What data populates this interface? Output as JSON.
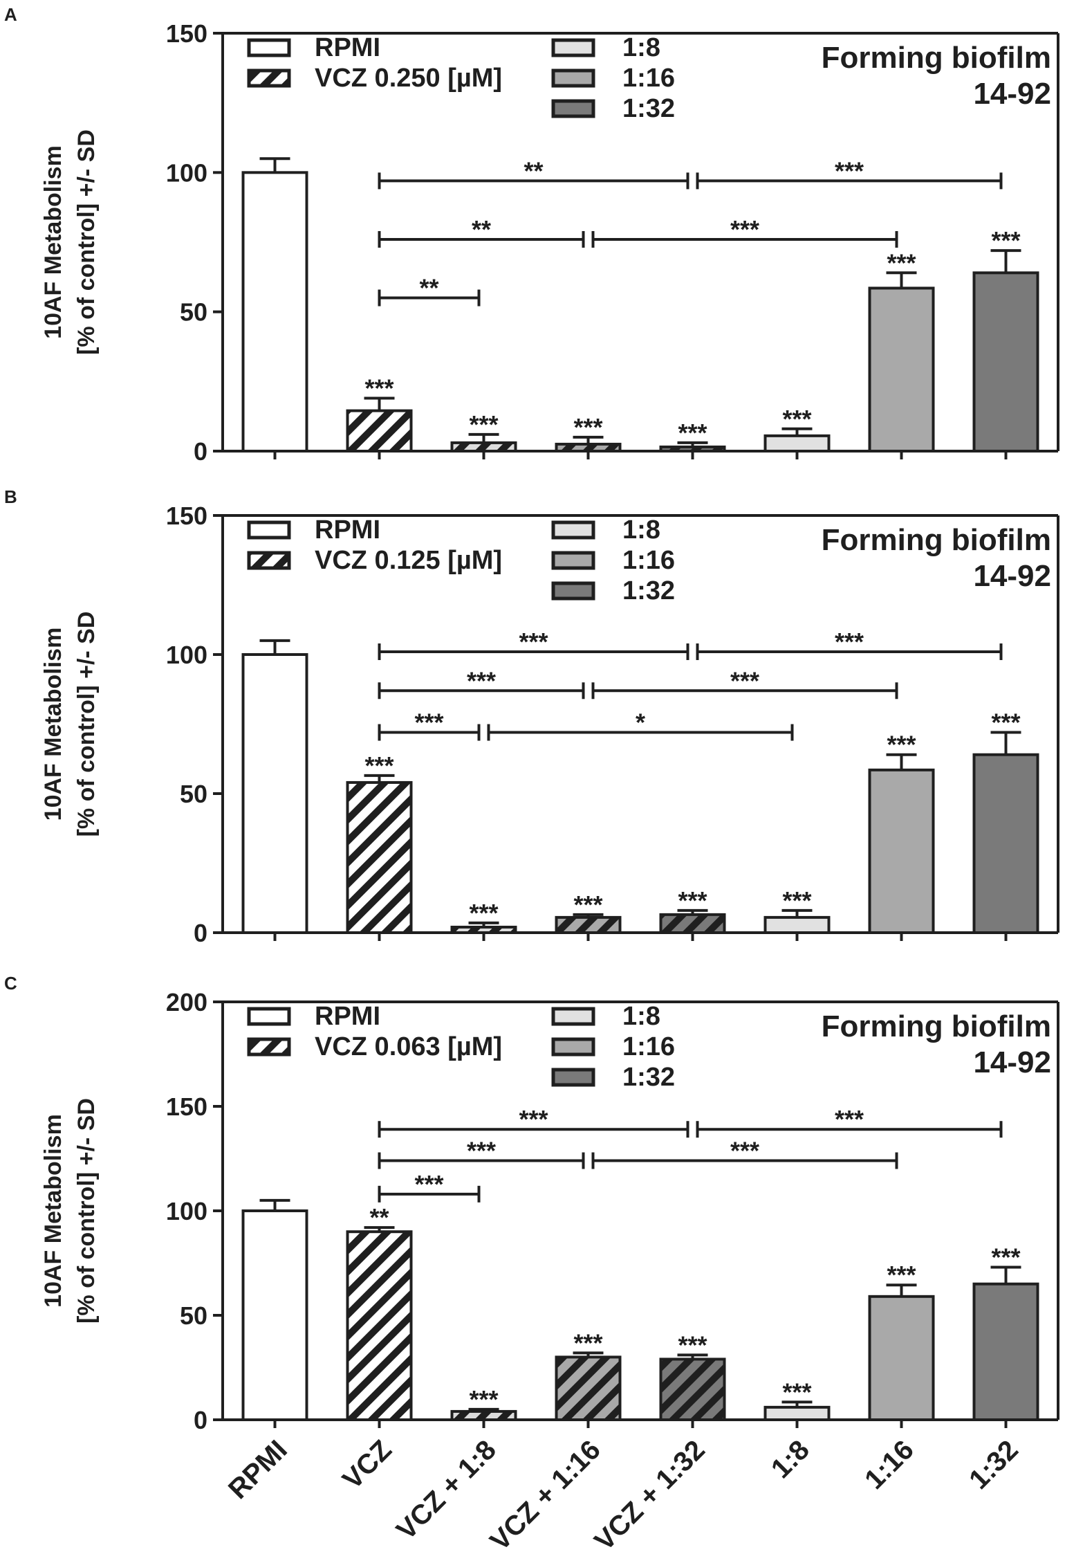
{
  "colors": {
    "rpmi": "#ffffff",
    "c18": "#e1e1e1",
    "c116": "#a9a9a9",
    "c132": "#7a7a7a",
    "ink": "#1f1f1f"
  },
  "chart_data": [
    {
      "type": "bar",
      "panel_label": "A",
      "ylabel_line1": "10AF Metabolism",
      "ylabel_line2": "[% of control] +/- SD",
      "ylim": [
        0,
        150
      ],
      "yticks": [
        "0",
        "50",
        "100",
        "150"
      ],
      "title_line1": "Forming biofilm",
      "title_line2": "14-92",
      "legend": {
        "rpmi": "RPMI",
        "vcz": "VCZ 0.250 [µM]",
        "c18": "1:8",
        "c116": "1:16",
        "c132": "1:32"
      },
      "categories": [
        "RPMI",
        "VCZ",
        "VCZ + 1:8",
        "VCZ + 1:16",
        "VCZ + 1:32",
        "1:8",
        "1:16",
        "1:32"
      ],
      "values": [
        100,
        14.5,
        3,
        2.5,
        1.5,
        5.5,
        58.5,
        64
      ],
      "sd": [
        5,
        4.5,
        3,
        2.5,
        1.5,
        2.5,
        5.5,
        8
      ],
      "marks": [
        "",
        "***",
        "***",
        "***",
        "***",
        "***",
        "***",
        "***"
      ],
      "comparisons": [
        {
          "from": 1,
          "to": 4,
          "y": 97,
          "label": "**"
        },
        {
          "from": 4,
          "to": 7,
          "y": 97,
          "label": "***"
        },
        {
          "from": 1,
          "to": 3,
          "y": 76,
          "label": "**"
        },
        {
          "from": 3,
          "to": 6,
          "y": 76,
          "label": "***"
        },
        {
          "from": 1,
          "to": 2,
          "y": 55,
          "label": "**"
        }
      ]
    },
    {
      "type": "bar",
      "panel_label": "B",
      "ylabel_line1": "10AF Metabolism",
      "ylabel_line2": "[% of control] +/- SD",
      "ylim": [
        0,
        150
      ],
      "yticks": [
        "0",
        "50",
        "100",
        "150"
      ],
      "title_line1": "Forming biofilm",
      "title_line2": "14-92",
      "legend": {
        "rpmi": "RPMI",
        "vcz": "VCZ 0.125 [µM]",
        "c18": "1:8",
        "c116": "1:16",
        "c132": "1:32"
      },
      "categories": [
        "RPMI",
        "VCZ",
        "VCZ + 1:8",
        "VCZ + 1:16",
        "VCZ + 1:32",
        "1:8",
        "1:16",
        "1:32"
      ],
      "values": [
        100,
        54,
        2,
        5.5,
        6.5,
        5.5,
        58.5,
        64
      ],
      "sd": [
        5,
        2.5,
        1.5,
        1,
        1.5,
        2.5,
        5.5,
        8
      ],
      "marks": [
        "",
        "***",
        "***",
        "***",
        "***",
        "***",
        "***",
        "***"
      ],
      "comparisons": [
        {
          "from": 1,
          "to": 4,
          "y": 101,
          "label": "***"
        },
        {
          "from": 4,
          "to": 7,
          "y": 101,
          "label": "***"
        },
        {
          "from": 1,
          "to": 3,
          "y": 87,
          "label": "***"
        },
        {
          "from": 3,
          "to": 6,
          "y": 87,
          "label": "***"
        },
        {
          "from": 1,
          "to": 2,
          "y": 72,
          "label": "***"
        },
        {
          "from": 2,
          "to": 5,
          "y": 72,
          "label": "*"
        }
      ]
    },
    {
      "type": "bar",
      "panel_label": "C",
      "ylabel_line1": "10AF Metabolism",
      "ylabel_line2": "[% of control] +/- SD",
      "ylim": [
        0,
        200
      ],
      "yticks": [
        "0",
        "50",
        "100",
        "150",
        "200"
      ],
      "title_line1": "Forming biofilm",
      "title_line2": "14-92",
      "legend": {
        "rpmi": "RPMI",
        "vcz": "VCZ 0.063 [µM]",
        "c18": "1:8",
        "c116": "1:16",
        "c132": "1:32"
      },
      "categories": [
        "RPMI",
        "VCZ",
        "VCZ + 1:8",
        "VCZ + 1:16",
        "VCZ + 1:32",
        "1:8",
        "1:16",
        "1:32"
      ],
      "values": [
        100,
        90,
        4,
        30,
        29,
        6,
        59,
        65
      ],
      "sd": [
        5,
        2,
        1,
        2,
        2,
        2.5,
        5.5,
        8
      ],
      "marks": [
        "",
        "**",
        "***",
        "***",
        "***",
        "***",
        "***",
        "***"
      ],
      "comparisons": [
        {
          "from": 1,
          "to": 4,
          "y": 139,
          "label": "***"
        },
        {
          "from": 4,
          "to": 7,
          "y": 139,
          "label": "***"
        },
        {
          "from": 1,
          "to": 3,
          "y": 124,
          "label": "***"
        },
        {
          "from": 3,
          "to": 6,
          "y": 124,
          "label": "***"
        },
        {
          "from": 1,
          "to": 2,
          "y": 108,
          "label": "***"
        }
      ]
    }
  ]
}
